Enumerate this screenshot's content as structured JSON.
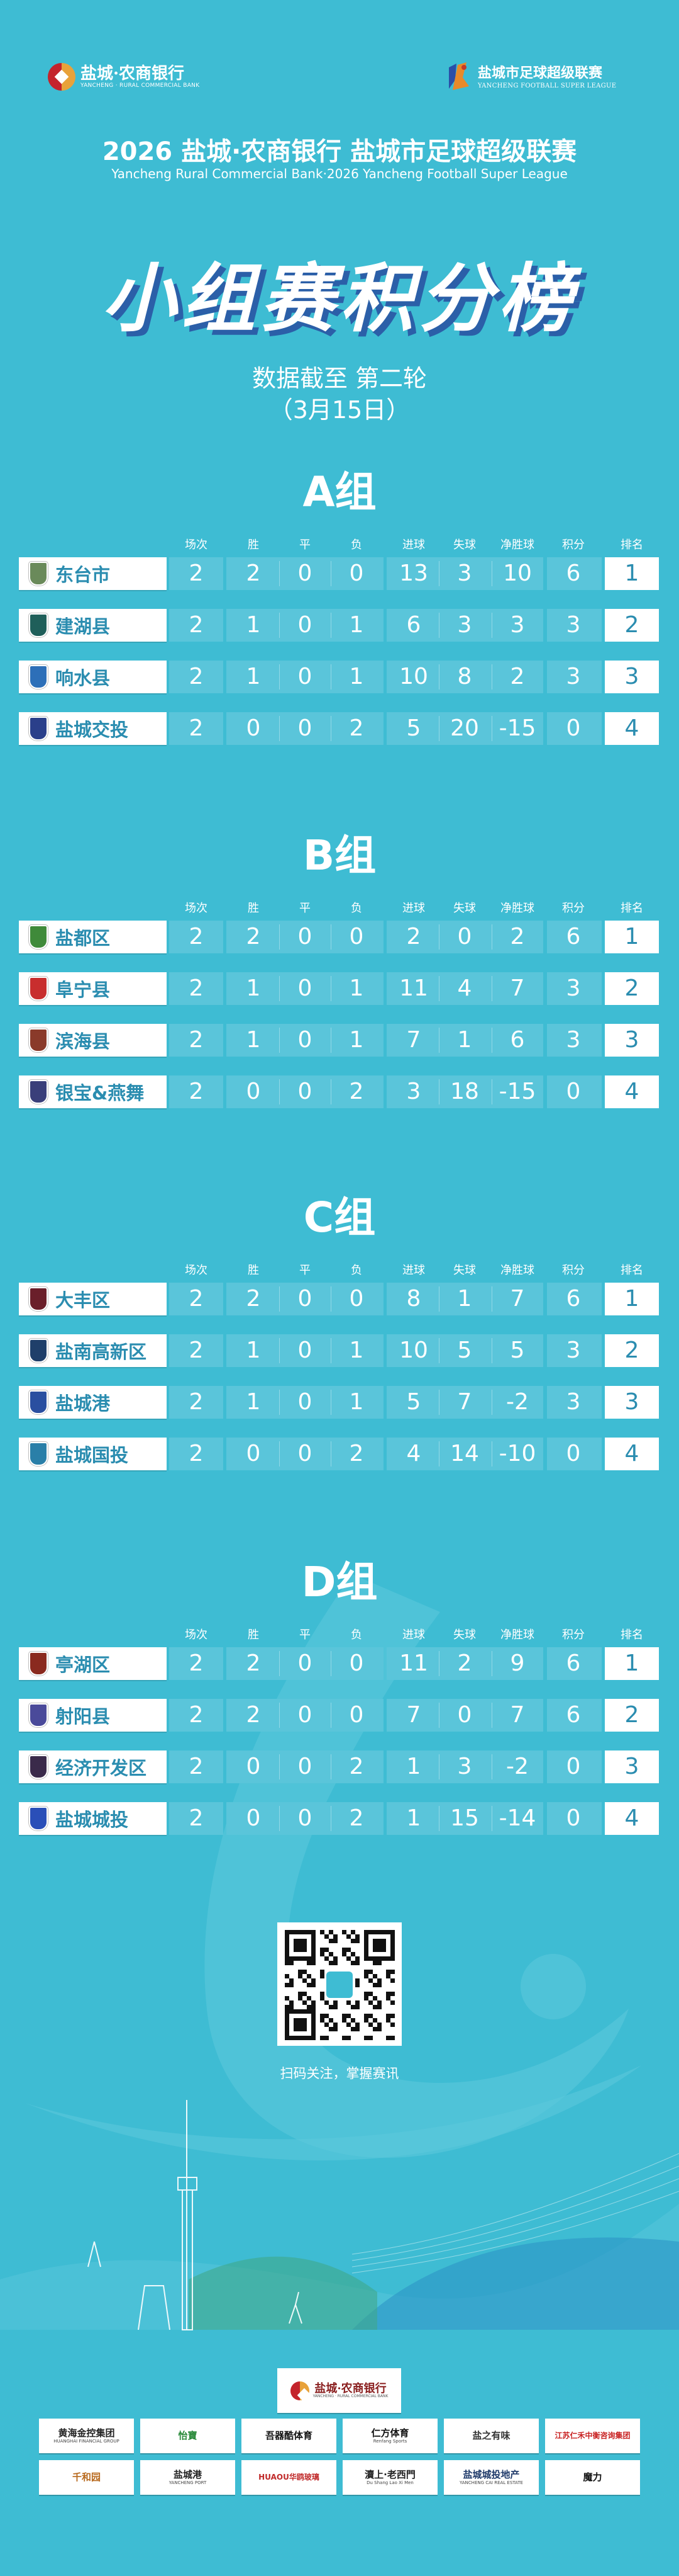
{
  "header": {
    "bank_logo_cn": "盐城·农商银行",
    "bank_logo_en": "YANCHENG · RURAL COMMERCIAL BANK",
    "league_logo_cn": "盐城市足球超级联赛",
    "league_logo_en": "YANCHENG FOOTBALL SUPER LEAGUE",
    "title": "2026 盐城·农商银行 盐城市足球超级联赛",
    "subtitle": "Yancheng Rural Commercial Bank·2026 Yancheng Football Super League",
    "main_title": "小组赛积分榜",
    "as_of": "数据截至 第二轮",
    "date": "（3月15日）"
  },
  "columns": [
    "场次",
    "胜",
    "平",
    "负",
    "进球",
    "失球",
    "净胜球",
    "积分",
    "排名"
  ],
  "colors": {
    "background": "#3ebcd3",
    "cell": "#5ac5da",
    "team_text": "#2b8db0",
    "shadow": "#2b5fa8"
  },
  "groups": [
    {
      "title": "A组",
      "teams": [
        {
          "name": "东台市",
          "badge": "#6a8a5a",
          "played": "2",
          "won": "2",
          "drawn": "0",
          "lost": "0",
          "gf": "13",
          "ga": "3",
          "gd": "10",
          "pts": "6",
          "rank": "1"
        },
        {
          "name": "建湖县",
          "badge": "#1f5f5a",
          "played": "2",
          "won": "1",
          "drawn": "0",
          "lost": "1",
          "gf": "6",
          "ga": "3",
          "gd": "3",
          "pts": "3",
          "rank": "2"
        },
        {
          "name": "响水县",
          "badge": "#2d6fb8",
          "played": "2",
          "won": "1",
          "drawn": "0",
          "lost": "1",
          "gf": "10",
          "ga": "8",
          "gd": "2",
          "pts": "3",
          "rank": "3"
        },
        {
          "name": "盐城交投",
          "badge": "#2a3f8a",
          "played": "2",
          "won": "0",
          "drawn": "0",
          "lost": "2",
          "gf": "5",
          "ga": "20",
          "gd": "-15",
          "pts": "0",
          "rank": "4"
        }
      ]
    },
    {
      "title": "B组",
      "teams": [
        {
          "name": "盐都区",
          "badge": "#3f8a3a",
          "played": "2",
          "won": "2",
          "drawn": "0",
          "lost": "0",
          "gf": "2",
          "ga": "0",
          "gd": "2",
          "pts": "6",
          "rank": "1"
        },
        {
          "name": "阜宁县",
          "badge": "#c82e2e",
          "played": "2",
          "won": "1",
          "drawn": "0",
          "lost": "1",
          "gf": "11",
          "ga": "4",
          "gd": "7",
          "pts": "3",
          "rank": "2"
        },
        {
          "name": "滨海县",
          "badge": "#8a3a2a",
          "played": "2",
          "won": "1",
          "drawn": "0",
          "lost": "1",
          "gf": "7",
          "ga": "1",
          "gd": "6",
          "pts": "3",
          "rank": "3"
        },
        {
          "name": "银宝&燕舞",
          "badge": "#3a3f7a",
          "played": "2",
          "won": "0",
          "drawn": "0",
          "lost": "2",
          "gf": "3",
          "ga": "18",
          "gd": "-15",
          "pts": "0",
          "rank": "4"
        }
      ]
    },
    {
      "title": "C组",
      "teams": [
        {
          "name": "大丰区",
          "badge": "#6a1f2a",
          "played": "2",
          "won": "2",
          "drawn": "0",
          "lost": "0",
          "gf": "8",
          "ga": "1",
          "gd": "7",
          "pts": "6",
          "rank": "1"
        },
        {
          "name": "盐南高新区",
          "badge": "#1f3f6a",
          "played": "2",
          "won": "1",
          "drawn": "0",
          "lost": "1",
          "gf": "10",
          "ga": "5",
          "gd": "5",
          "pts": "3",
          "rank": "2"
        },
        {
          "name": "盐城港",
          "badge": "#2a4fa0",
          "played": "2",
          "won": "1",
          "drawn": "0",
          "lost": "1",
          "gf": "5",
          "ga": "7",
          "gd": "-2",
          "pts": "3",
          "rank": "3"
        },
        {
          "name": "盐城国投",
          "badge": "#2a7fa8",
          "played": "2",
          "won": "0",
          "drawn": "0",
          "lost": "2",
          "gf": "4",
          "ga": "14",
          "gd": "-10",
          "pts": "0",
          "rank": "4"
        }
      ]
    },
    {
      "title": "D组",
      "teams": [
        {
          "name": "亭湖区",
          "badge": "#8a2a1f",
          "played": "2",
          "won": "2",
          "drawn": "0",
          "lost": "0",
          "gf": "11",
          "ga": "2",
          "gd": "9",
          "pts": "6",
          "rank": "1"
        },
        {
          "name": "射阳县",
          "badge": "#4a4a9a",
          "played": "2",
          "won": "2",
          "drawn": "0",
          "lost": "0",
          "gf": "7",
          "ga": "0",
          "gd": "7",
          "pts": "6",
          "rank": "2"
        },
        {
          "name": "经济开发区",
          "badge": "#3a2a4a",
          "played": "2",
          "won": "0",
          "drawn": "0",
          "lost": "2",
          "gf": "1",
          "ga": "3",
          "gd": "-2",
          "pts": "0",
          "rank": "3"
        },
        {
          "name": "盐城城投",
          "badge": "#2a4fb8",
          "played": "2",
          "won": "0",
          "drawn": "0",
          "lost": "2",
          "gf": "1",
          "ga": "15",
          "gd": "-14",
          "pts": "0",
          "rank": "4"
        }
      ]
    }
  ],
  "qr": {
    "caption": "扫码关注，掌握赛讯"
  },
  "sponsors": {
    "main": {
      "name": "盐城·农商银行",
      "sub": "YANCHENG · RURAL COMMERCIAL BANK",
      "color": "#8a1f1f"
    },
    "items": [
      {
        "name": "黄海金控集团",
        "sub": "HUANGHAI FINANCIAL GROUP",
        "color": "#222222"
      },
      {
        "name": "怡寶",
        "sub": "",
        "color": "#2a8a3a"
      },
      {
        "name": "吾器酷体育",
        "sub": "",
        "color": "#111111"
      },
      {
        "name": "仁方体育",
        "sub": "Renfang Sports",
        "color": "#111111"
      },
      {
        "name": "盐之有味",
        "sub": "",
        "color": "#333333"
      },
      {
        "name": "江苏仁禾中衡咨询集团",
        "sub": "",
        "color": "#c82020"
      },
      {
        "name": "千和园",
        "sub": "",
        "color": "#b86a1f"
      },
      {
        "name": "盐城港",
        "sub": "YANCHENG PORT",
        "color": "#222222"
      },
      {
        "name": "HUAOU华鸥玻璃",
        "sub": "",
        "color": "#c02a2a"
      },
      {
        "name": "瀆上·老西門",
        "sub": "Du Shang Lao Xi Men",
        "color": "#222222"
      },
      {
        "name": "盐城城投地产",
        "sub": "YANCHENG CAI REAL ESTATE",
        "color": "#1f3a6a"
      },
      {
        "name": "魔力",
        "sub": "",
        "color": "#111111"
      }
    ]
  }
}
